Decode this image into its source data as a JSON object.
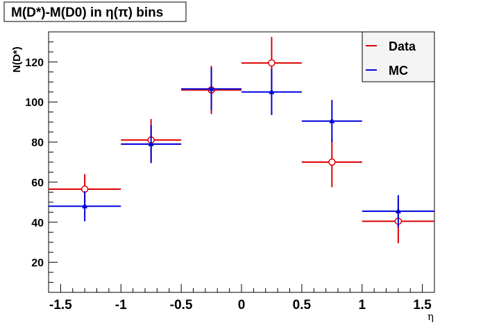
{
  "chart_data": {
    "type": "scatter",
    "title": "M(D*)-M(D0) in η(π) bins",
    "xlabel": "η",
    "ylabel": "N(D*)",
    "xlim": [
      -1.6,
      1.6
    ],
    "ylim": [
      5,
      135
    ],
    "x_ticks": [
      -1.5,
      -1,
      -0.5,
      0,
      0.5,
      1,
      1.5
    ],
    "x_tick_labels": [
      "-1.5",
      "-1",
      "-0.5",
      "0",
      "0.5",
      "1",
      "1.5"
    ],
    "y_ticks": [
      20,
      40,
      60,
      80,
      100,
      120
    ],
    "y_tick_labels": [
      "20",
      "40",
      "60",
      "80",
      "100",
      "120"
    ],
    "grid": false,
    "legend_position": "top-right",
    "legend": [
      "Data",
      "MC"
    ],
    "series": [
      {
        "name": "Data",
        "color": "#dd0000",
        "marker": "open-circle",
        "points": [
          {
            "x": -1.3,
            "xlo": -1.6,
            "xhi": -1.0,
            "y": 56.5,
            "ylo": 49.5,
            "yhi": 64.0
          },
          {
            "x": -0.75,
            "xlo": -1.0,
            "xhi": -0.5,
            "y": 81.0,
            "ylo": 70.5,
            "yhi": 91.5
          },
          {
            "x": -0.25,
            "xlo": -0.5,
            "xhi": 0.0,
            "y": 106.0,
            "ylo": 94.0,
            "yhi": 118.0
          },
          {
            "x": 0.25,
            "xlo": 0.0,
            "xhi": 0.5,
            "y": 119.5,
            "ylo": 106.5,
            "yhi": 132.5
          },
          {
            "x": 0.75,
            "xlo": 0.5,
            "xhi": 1.0,
            "y": 70.0,
            "ylo": 57.5,
            "yhi": 82.0
          },
          {
            "x": 1.3,
            "xlo": 1.0,
            "xhi": 1.6,
            "y": 40.5,
            "ylo": 29.5,
            "yhi": 51.5
          }
        ]
      },
      {
        "name": "MC",
        "color": "#0000dd",
        "marker": "filled-triangle",
        "points": [
          {
            "x": -1.3,
            "xlo": -1.6,
            "xhi": -1.0,
            "y": 48.0,
            "ylo": 40.5,
            "yhi": 55.5
          },
          {
            "x": -0.75,
            "xlo": -1.0,
            "xhi": -0.5,
            "y": 79.0,
            "ylo": 69.5,
            "yhi": 88.5
          },
          {
            "x": -0.25,
            "xlo": -0.5,
            "xhi": 0.0,
            "y": 106.5,
            "ylo": 96.0,
            "yhi": 117.0
          },
          {
            "x": 0.25,
            "xlo": 0.0,
            "xhi": 0.5,
            "y": 105.0,
            "ylo": 93.5,
            "yhi": 116.5
          },
          {
            "x": 0.75,
            "xlo": 0.5,
            "xhi": 1.0,
            "y": 90.5,
            "ylo": 80.0,
            "yhi": 101.0
          },
          {
            "x": 1.3,
            "xlo": 1.0,
            "xhi": 1.6,
            "y": 45.5,
            "ylo": 37.5,
            "yhi": 53.5
          }
        ]
      }
    ]
  }
}
